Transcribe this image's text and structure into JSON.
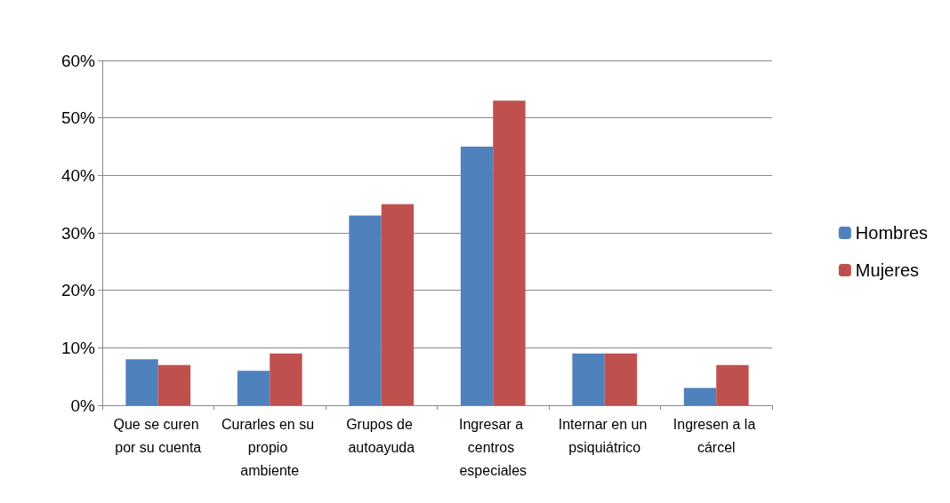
{
  "chart_data": {
    "type": "bar",
    "categories": [
      "Que se curen por su cuenta",
      "Curarles en su propio ambiente",
      "Grupos de autoayuda",
      "Ingresar a centros especiales",
      "Internar en un psiquiátrico",
      "Ingresen a la cárcel"
    ],
    "series": [
      {
        "name": "Hombres",
        "color": "#4f81bd",
        "values": [
          8,
          6,
          33,
          45,
          9,
          3
        ]
      },
      {
        "name": "Mujeres",
        "color": "#c0504d",
        "values": [
          7,
          9,
          35,
          53,
          9,
          7
        ]
      }
    ],
    "ylim": [
      0,
      60
    ],
    "yticks": [
      {
        "value": 0,
        "label": "0%"
      },
      {
        "value": 10,
        "label": "10%"
      },
      {
        "value": 20,
        "label": "20%"
      },
      {
        "value": 30,
        "label": "30%"
      },
      {
        "value": 40,
        "label": "40%"
      },
      {
        "value": 50,
        "label": "50%"
      },
      {
        "value": 60,
        "label": "60%"
      }
    ],
    "grid": "y",
    "legend": "right"
  }
}
